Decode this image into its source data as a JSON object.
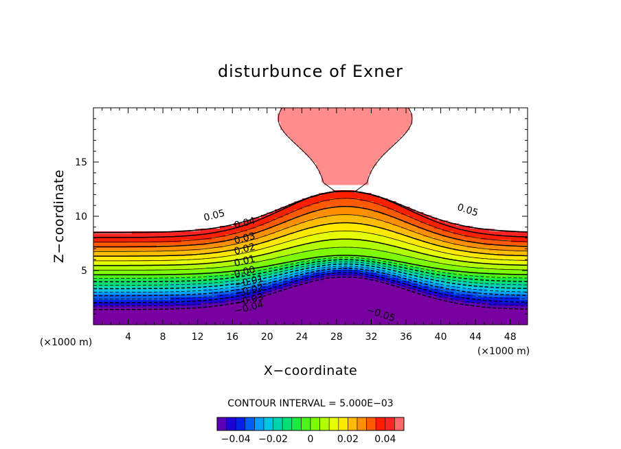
{
  "chart_data": {
    "type": "contour",
    "title": "disturbunce of Exner",
    "xlabel": "X−coordinate",
    "ylabel": "Z−coordinate",
    "x_unit_left": "(×1000 m)",
    "x_unit_right": "(×1000 m)",
    "xlim": [
      0,
      50
    ],
    "ylim": [
      0,
      20
    ],
    "xticks": [
      4,
      8,
      12,
      16,
      20,
      24,
      28,
      32,
      36,
      40,
      44,
      48
    ],
    "yticks": [
      5,
      10,
      15
    ],
    "contour_interval_text": "CONTOUR INTERVAL = 5.000E−03",
    "contour_interval": 0.005,
    "level_range": [
      -0.05,
      0.05
    ],
    "contour_labels": [
      {
        "text": "0.05",
        "x": 14,
        "z": 9.8
      },
      {
        "text": "0.04",
        "x": 17.5,
        "z": 9.1
      },
      {
        "text": "0.03",
        "x": 17.5,
        "z": 7.7
      },
      {
        "text": "0.02",
        "x": 17.5,
        "z": 6.7
      },
      {
        "text": "0.01",
        "x": 17.5,
        "z": 5.6
      },
      {
        "text": "0.00",
        "x": 17.5,
        "z": 4.6
      },
      {
        "text": "−0.01",
        "x": 18,
        "z": 3.7
      },
      {
        "text": "−0.02",
        "x": 18,
        "z": 2.9
      },
      {
        "text": "−0.03",
        "x": 18,
        "z": 2.0
      },
      {
        "text": "−0.04",
        "x": 18,
        "z": 1.3
      },
      {
        "text": "−0.05",
        "x": 33,
        "z": 0.7
      },
      {
        "text": "0.05",
        "x": 43,
        "z": 10.3
      }
    ],
    "colorbar": {
      "ticks": [
        -0.04,
        -0.02,
        0,
        0.02,
        0.04
      ],
      "tick_labels": [
        "−0.04",
        "−0.02",
        "0",
        "0.02",
        "0.04"
      ]
    }
  }
}
